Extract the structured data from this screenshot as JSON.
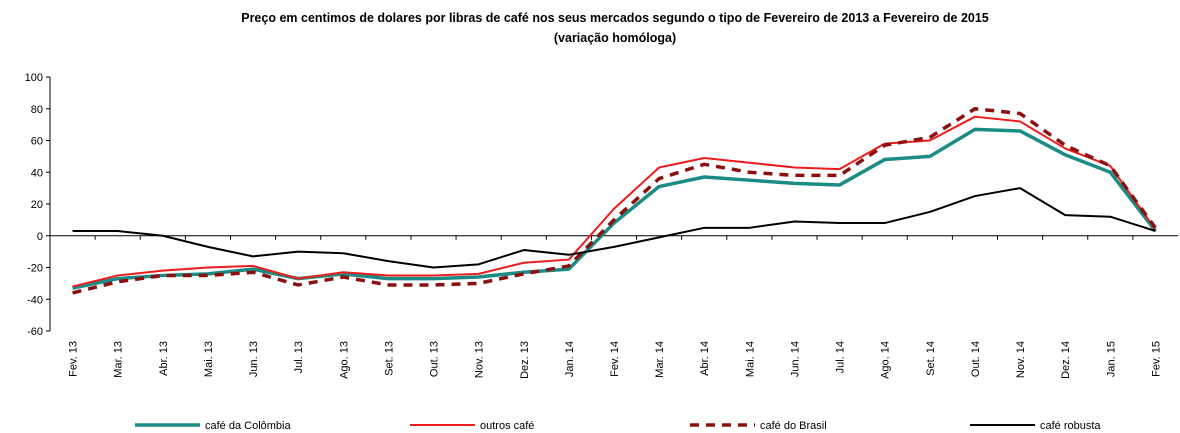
{
  "chart_data": {
    "type": "line",
    "title": "Preço em centimos de dolares por libras de café nos seus mercados segundo o tipo de Fevereiro de 2013 a Fevereiro de 2015",
    "subtitle": "(variação homóloga)",
    "categories": [
      "Fev. 13",
      "Mar. 13",
      "Abr. 13",
      "Mai. 13",
      "Jun. 13",
      "Jul. 13",
      "Ago. 13",
      "Set. 13",
      "Out. 13",
      "Nov. 13",
      "Dez. 13",
      "Jan. 14",
      "Fev. 14",
      "Mar. 14",
      "Abr. 14",
      "Mai. 14",
      "Jun. 14",
      "Jul. 14",
      "Ago. 14",
      "Set. 14",
      "Out. 14",
      "Nov. 14",
      "Dez. 14",
      "Jan. 15",
      "Fev. 15"
    ],
    "series": [
      {
        "name": "café da Colômbia",
        "color": "#1a8c85",
        "style": "solid",
        "width": 3.5,
        "values": [
          -33,
          -27,
          -25,
          -24,
          -21,
          -27,
          -24,
          -27,
          -27,
          -26,
          -23,
          -21,
          8,
          31,
          37,
          35,
          33,
          32,
          48,
          50,
          67,
          66,
          51,
          40,
          3
        ]
      },
      {
        "name": "outros café",
        "color": "#ee1c1c",
        "style": "solid",
        "width": 2,
        "values": [
          -32,
          -25,
          -22,
          -20,
          -19,
          -27,
          -23,
          -25,
          -25,
          -24,
          -17,
          -15,
          17,
          43,
          49,
          46,
          43,
          42,
          58,
          60,
          75,
          72,
          55,
          44,
          4
        ]
      },
      {
        "name": "café do Brasil",
        "color": "#8b1010",
        "style": "dashed",
        "width": 3.5,
        "values": [
          -36,
          -29,
          -25,
          -25,
          -23,
          -31,
          -26,
          -31,
          -31,
          -30,
          -24,
          -19,
          10,
          36,
          45,
          40,
          38,
          38,
          57,
          62,
          80,
          77,
          57,
          44,
          5
        ]
      },
      {
        "name": "café robusta",
        "color": "#000000",
        "style": "solid",
        "width": 2,
        "values": [
          3,
          3,
          0,
          -7,
          -13,
          -10,
          -11,
          -16,
          -20,
          -18,
          -9,
          -12,
          -7,
          -1,
          5,
          5,
          9,
          8,
          8,
          15,
          25,
          30,
          13,
          12,
          3
        ]
      }
    ],
    "ylim": [
      -60,
      100
    ],
    "yticks": [
      -60,
      -40,
      -20,
      0,
      20,
      40,
      60,
      80,
      100
    ],
    "grid": false
  }
}
